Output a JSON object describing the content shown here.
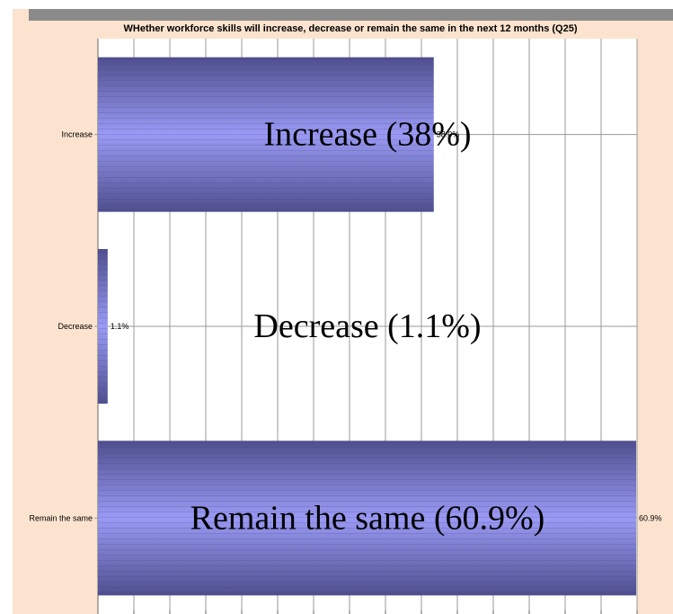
{
  "chart_data": {
    "type": "bar",
    "orientation": "horizontal",
    "title": "WHether  workforce skills  will increase, decrease or remain the same in the next 12 months (Q25)",
    "categories": [
      "Increase",
      "Decrease",
      "Remain the same"
    ],
    "values": [
      38.0,
      1.1,
      60.9
    ],
    "value_labels": [
      "38.0%",
      "1.1%",
      "60.9%"
    ],
    "annotations": [
      "Increase (38%)",
      "Decrease (1.1%)",
      "Remain the same (60.9%)"
    ],
    "xlim": [
      0,
      61
    ],
    "grid": true,
    "colors": {
      "bar_dark": "#4f4f8f",
      "bar_light": "#9a9af5",
      "background": "#fbe3cf",
      "plot": "#ffffff",
      "grid": "#999999"
    }
  }
}
